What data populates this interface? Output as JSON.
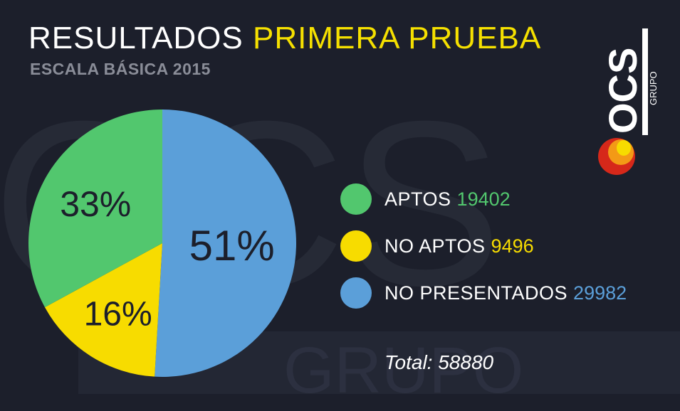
{
  "header": {
    "title_main": "RESULTADOS",
    "title_accent": "PRIMERA PRUEBA",
    "subtitle": "ESCALA BÁSICA 2015"
  },
  "logo": {
    "letters": "OCS",
    "sub": "GRUPO"
  },
  "watermark": {
    "letters": "OCS",
    "word": "GRUPO"
  },
  "colors": {
    "background": "#1c1f2b",
    "aptos": "#52c76e",
    "no_aptos": "#f7dc00",
    "no_presentados": "#5b9fd9",
    "accent_title": "#f5e000"
  },
  "chart_data": {
    "type": "pie",
    "slices": [
      {
        "name": "NO PRESENTADOS",
        "percent_label": "51%",
        "value": 29982,
        "color": "#5b9fd9"
      },
      {
        "name": "NO APTOS",
        "percent_label": "16%",
        "value": 9496,
        "color": "#f7dc00"
      },
      {
        "name": "APTOS",
        "percent_label": "33%",
        "value": 19402,
        "color": "#52c76e"
      }
    ],
    "legend": [
      {
        "label": "APTOS",
        "value": "19402",
        "color": "#52c76e"
      },
      {
        "label": "NO APTOS",
        "value": "9496",
        "color": "#f7dc00"
      },
      {
        "label": "NO PRESENTADOS",
        "value": "29982",
        "color": "#5b9fd9"
      }
    ],
    "total": "Total: 58880",
    "legend_placement": "right"
  }
}
